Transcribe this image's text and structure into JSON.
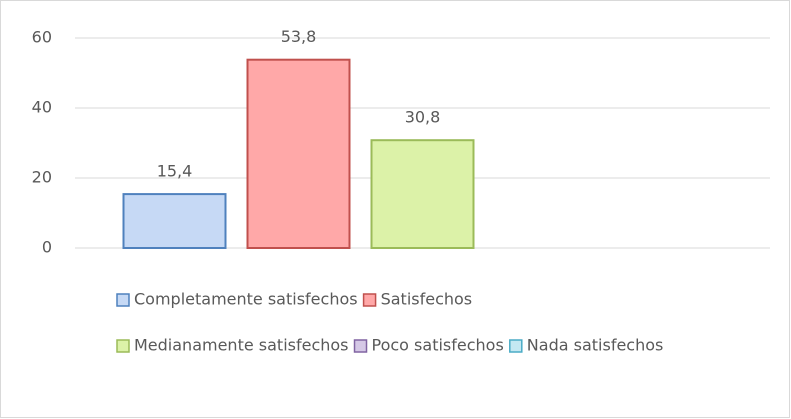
{
  "chart_data": {
    "type": "bar",
    "series": [
      {
        "name": "Completamente satisfechos",
        "color": "#4f81bd",
        "fill": "#c6d9f5",
        "values": [
          15.4
        ],
        "value_labels": [
          "15,4"
        ]
      },
      {
        "name": "Satisfechos",
        "color": "#c0504d",
        "fill": "#ffa8a8",
        "values": [
          53.8
        ],
        "value_labels": [
          "53,8"
        ]
      },
      {
        "name": "Medianamente satisfechos",
        "color": "#9bbb59",
        "fill": "#dcf2a8",
        "values": [
          30.8
        ],
        "value_labels": [
          "30,8"
        ]
      },
      {
        "name": "Poco satisfechos",
        "color": "#8064a2",
        "fill": "#d5c8e6",
        "values": [
          null
        ]
      },
      {
        "name": "Nada satisfechos",
        "color": "#4bacc6",
        "fill": "#c4e8f2",
        "values": [
          null
        ]
      }
    ],
    "ylim": [
      0,
      60
    ],
    "yticks": [
      0,
      20,
      40,
      60
    ],
    "grid": true,
    "legend": "bottom"
  }
}
